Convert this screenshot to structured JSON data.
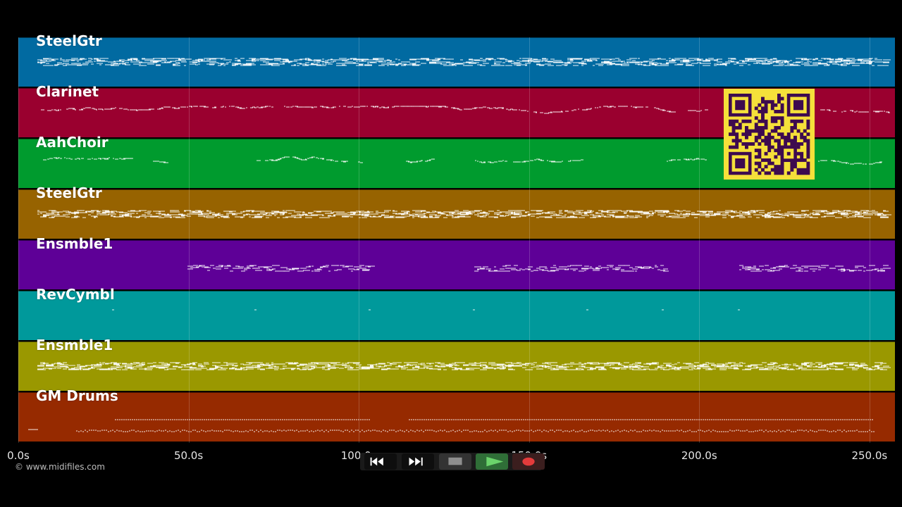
{
  "tracks": [
    {
      "name": "SteelGtr",
      "color": "#016aa1",
      "pattern": "dense"
    },
    {
      "name": "Clarinet",
      "color": "#9a002f",
      "pattern": "melody"
    },
    {
      "name": "AahChoir",
      "color": "#009b2e",
      "pattern": "sparse-melody"
    },
    {
      "name": "SteelGtr",
      "color": "#976300",
      "pattern": "dense"
    },
    {
      "name": "Ensmble1",
      "color": "#5e0097",
      "pattern": "sections"
    },
    {
      "name": "RevCymbl",
      "color": "#00999b",
      "pattern": "dots"
    },
    {
      "name": "Ensmble1",
      "color": "#9a9800",
      "pattern": "dense"
    },
    {
      "name": "GM Drums",
      "color": "#962a00",
      "pattern": "drums"
    }
  ],
  "timeline": {
    "ticks": [
      "0.0s",
      "50.0s",
      "100.0s",
      "150.0s",
      "200.0s",
      "250.0s"
    ],
    "tick_seconds": [
      0,
      50,
      100,
      150,
      200,
      250
    ]
  },
  "copyright": "© www.midifiles.com",
  "transport": {
    "buttons": [
      {
        "name": "rewind-button",
        "icon": "rewind-icon",
        "bg": "#0e0e0e",
        "fg": "#ffffff"
      },
      {
        "name": "fast-forward-button",
        "icon": "fast-forward-icon",
        "bg": "#0e0e0e",
        "fg": "#ffffff"
      },
      {
        "name": "stop-button",
        "icon": "stop-icon",
        "bg": "#333333",
        "fg": "#8e8e8e"
      },
      {
        "name": "play-button",
        "icon": "play-icon",
        "bg": "#2f6e37",
        "fg": "#6bd46b"
      },
      {
        "name": "record-button",
        "icon": "record-icon",
        "bg": "#3b1e1e",
        "fg": "#e23b3b"
      }
    ]
  },
  "qr_code": {
    "icon": "qr-code-icon",
    "fg": "#3d0a4f",
    "bg": "#f5e03a"
  }
}
